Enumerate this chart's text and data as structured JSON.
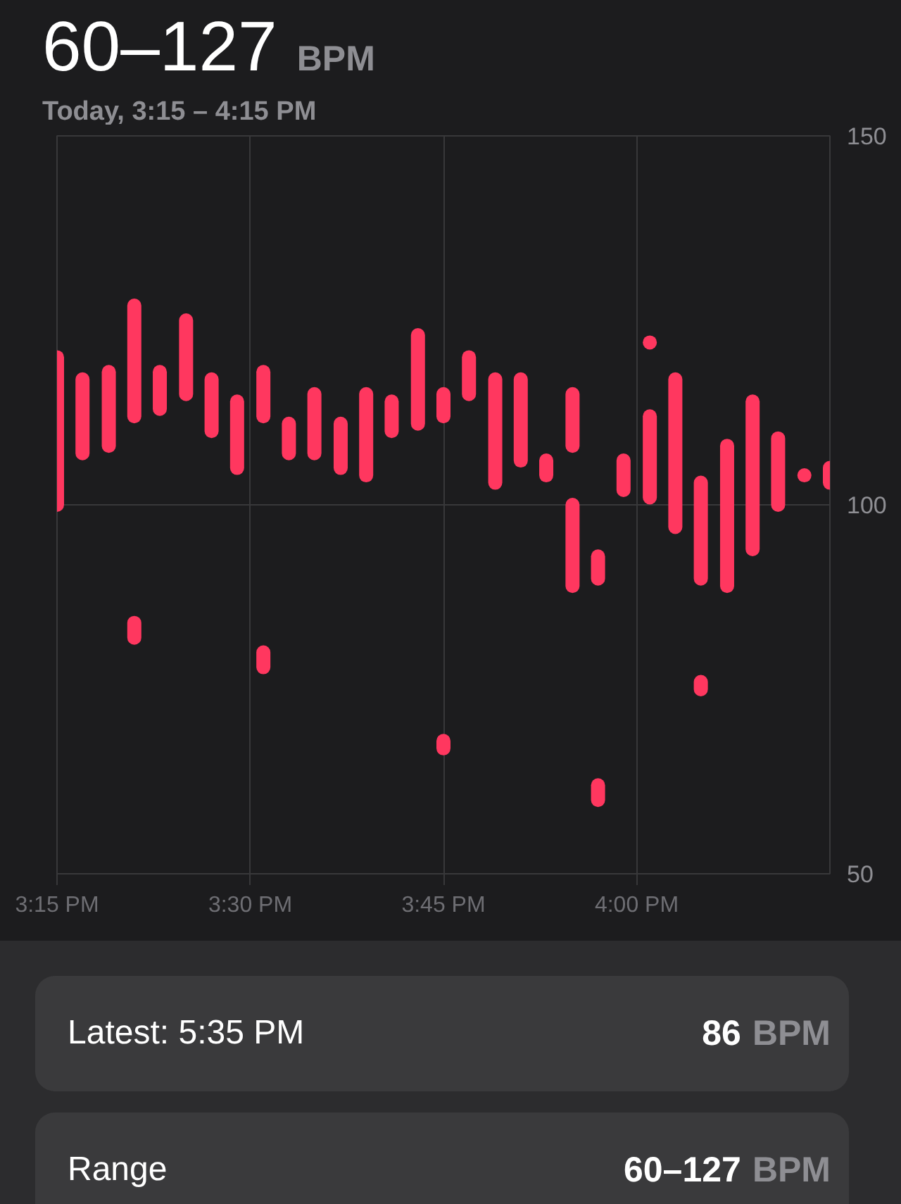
{
  "chart_data": {
    "type": "bar",
    "title": "60–127 BPM",
    "subtitle": "Today, 3:15 – 4:15 PM",
    "x": [
      15.25,
      15.283,
      15.317,
      15.35,
      15.383,
      15.417,
      15.45,
      15.483,
      15.517,
      15.55,
      15.583,
      15.617,
      15.65,
      15.683,
      15.717,
      15.75,
      15.783,
      15.817,
      15.85,
      15.883,
      15.917,
      15.95,
      15.983,
      16.017,
      16.05,
      16.083,
      16.117,
      16.15,
      16.183,
      16.217,
      16.25
    ],
    "series": [
      {
        "color": "#ff375f",
        "base": [
          100,
          107,
          108,
          112,
          113,
          115,
          110,
          105,
          112,
          107,
          107,
          105,
          104,
          110,
          111,
          112,
          115,
          103,
          106,
          104,
          108,
          90,
          102,
          101,
          97,
          90,
          89,
          94,
          100,
          null,
          103
        ],
        "values": [
          20,
          10,
          10,
          15,
          5,
          10,
          7,
          9,
          6,
          4,
          8,
          6,
          11,
          4,
          12,
          3,
          5,
          14,
          11,
          2,
          7,
          3,
          4,
          11,
          20,
          13,
          19,
          20,
          9,
          null,
          2
        ]
      },
      {
        "color": "#ff375f",
        "base": [
          null,
          null,
          null,
          82,
          null,
          null,
          null,
          null,
          78,
          null,
          null,
          null,
          null,
          null,
          null,
          67,
          null,
          null,
          null,
          null,
          89,
          60,
          null,
          null,
          null,
          75,
          null,
          null,
          null,
          null,
          null
        ],
        "values": [
          null,
          null,
          null,
          2,
          null,
          null,
          null,
          null,
          2,
          null,
          null,
          null,
          null,
          null,
          null,
          1,
          null,
          null,
          null,
          null,
          11,
          2,
          null,
          null,
          null,
          1,
          null,
          null,
          null,
          null,
          null
        ]
      },
      {
        "type": "scatter",
        "color": "#ff375f",
        "marker": "circle",
        "x": [
          16.017,
          16.217
        ],
        "values": [
          122,
          104
        ]
      }
    ],
    "xlim": [
      15.25,
      16.25
    ],
    "xticks": [
      {
        "value": 15.25,
        "label": "3:15 PM"
      },
      {
        "value": 15.5,
        "label": "3:30 PM"
      },
      {
        "value": 15.75,
        "label": "3:45 PM"
      },
      {
        "value": 16,
        "label": "4:00 PM"
      }
    ],
    "ylim": [
      50,
      150
    ],
    "yticks": [
      50,
      100,
      150
    ],
    "grid": true,
    "annotations": [
      "Latest: 5:35 PM",
      "86 BPM",
      "Range",
      "60–127 BPM"
    ]
  }
}
